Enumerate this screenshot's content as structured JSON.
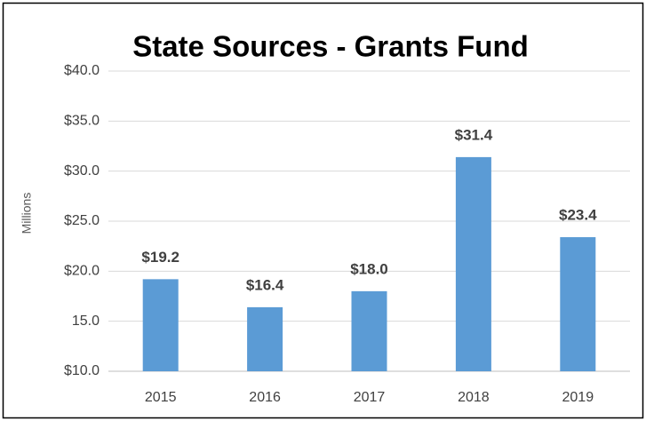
{
  "chart_data": {
    "type": "bar",
    "title": "State Sources - Grants Fund",
    "y_label": "Millions",
    "categories": [
      "2015",
      "2016",
      "2017",
      "2018",
      "2019"
    ],
    "values": [
      19.2,
      16.4,
      18.0,
      31.4,
      23.4
    ],
    "value_labels": [
      "$19.2",
      "$16.4",
      "$18.0",
      "$31.4",
      "$23.4"
    ],
    "color": "#5b9bd5",
    "ylim": [
      10,
      40
    ],
    "yticks": [
      {
        "value": 10,
        "label": "$10.0"
      },
      {
        "value": 15,
        "label": "15.0"
      },
      {
        "value": 20,
        "label": "$20.0"
      },
      {
        "value": 25,
        "label": "$25.0"
      },
      {
        "value": 30,
        "label": "$30.0"
      },
      {
        "value": 35,
        "label": "$35.0"
      },
      {
        "value": 40,
        "label": "$40.0"
      }
    ],
    "grid": true
  }
}
